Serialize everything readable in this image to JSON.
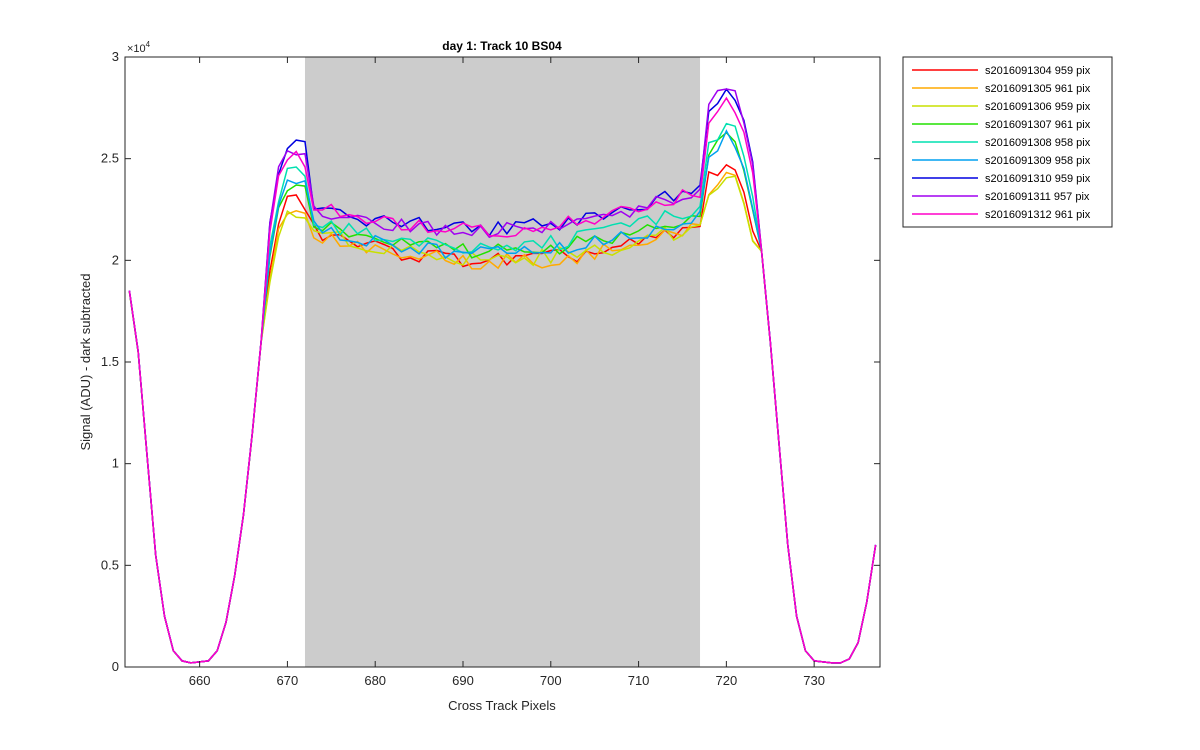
{
  "chart_data": {
    "type": "line",
    "title": "day 1: Track 10  BS04",
    "xlabel": "Cross Track Pixels",
    "ylabel": "Signal (ADU) - dark subtracted",
    "y_exponent_label": "×10",
    "y_exponent_power": "4",
    "xlim": [
      651.5,
      737.5
    ],
    "ylim": [
      0,
      3
    ],
    "xticks": [
      660,
      670,
      680,
      690,
      700,
      710,
      720,
      730
    ],
    "yticks": [
      0,
      0.5,
      1,
      1.5,
      2,
      2.5,
      3
    ],
    "ytick_labels": [
      "0",
      "0.5",
      "1",
      "1.5",
      "2",
      "2.5",
      "3"
    ],
    "shaded_region": [
      672,
      717
    ],
    "shaded_color": "#cccccc",
    "legend_position": "outside-right",
    "grid": false,
    "x": [
      652,
      653,
      654,
      655,
      656,
      657,
      658,
      659,
      660,
      661,
      662,
      663,
      664,
      665,
      666,
      667,
      668,
      669,
      670,
      671,
      672,
      673,
      674,
      675,
      676,
      677,
      678,
      679,
      680,
      681,
      682,
      683,
      684,
      685,
      686,
      687,
      688,
      689,
      690,
      691,
      692,
      693,
      694,
      695,
      696,
      697,
      698,
      699,
      700,
      701,
      702,
      703,
      704,
      705,
      706,
      707,
      708,
      709,
      710,
      711,
      712,
      713,
      714,
      715,
      716,
      717,
      718,
      719,
      720,
      721,
      722,
      723,
      724,
      725,
      726,
      727,
      728,
      729,
      730,
      731,
      732,
      733,
      734,
      735,
      736,
      737
    ],
    "series": [
      {
        "name": "s2016091304 959 pix",
        "color": "#ff0000",
        "offset": 0.0,
        "amp": 0.95,
        "tilt": 0.0,
        "seed": 1
      },
      {
        "name": "s2016091305 961 pix",
        "color": "#ffaa00",
        "offset": -0.005,
        "amp": 0.93,
        "tilt": 0.0,
        "seed": 2
      },
      {
        "name": "s2016091306 959 pix",
        "color": "#c8e000",
        "offset": 0.01,
        "amp": 0.92,
        "tilt": 0.0,
        "seed": 3
      },
      {
        "name": "s2016091307 961 pix",
        "color": "#22e000",
        "offset": 0.05,
        "amp": 0.97,
        "tilt": 0.01,
        "seed": 4
      },
      {
        "name": "s2016091308 958 pix",
        "color": "#00e0b0",
        "offset": 0.07,
        "amp": 0.99,
        "tilt": 0.02,
        "seed": 5
      },
      {
        "name": "s2016091309 958 pix",
        "color": "#00a0f0",
        "offset": 0.04,
        "amp": 0.98,
        "tilt": 0.01,
        "seed": 6
      },
      {
        "name": "s2016091310 959 pix",
        "color": "#0000e0",
        "offset": 0.16,
        "amp": 1.02,
        "tilt": 0.03,
        "seed": 7
      },
      {
        "name": "s2016091311 957 pix",
        "color": "#a000f0",
        "offset": 0.15,
        "amp": 1.02,
        "tilt": 0.03,
        "seed": 8
      },
      {
        "name": "s2016091312 961 pix",
        "color": "#ff00c8",
        "offset": 0.15,
        "amp": 1.0,
        "tilt": 0.02,
        "seed": 9
      }
    ]
  }
}
